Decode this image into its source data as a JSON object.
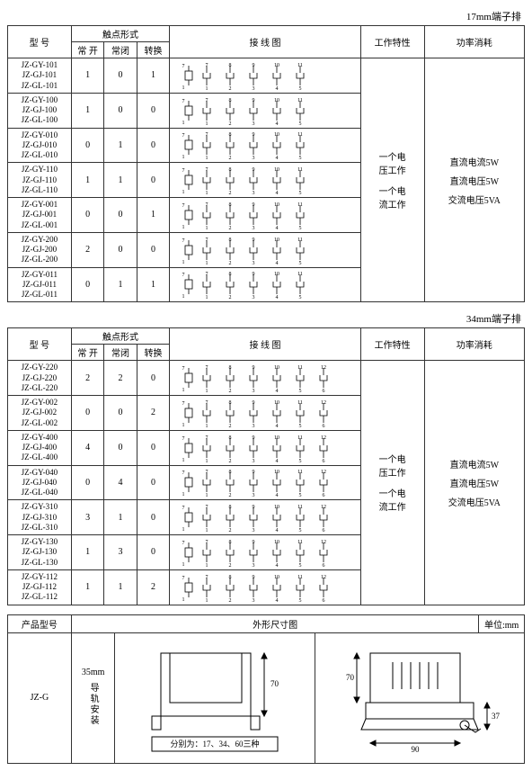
{
  "captions": {
    "top": "17mm端子排",
    "mid": "34mm端子排"
  },
  "headers": {
    "model": "型 号",
    "contact_form": "触点形式",
    "no": "常 开",
    "nc": "常闭",
    "co": "转换",
    "wiring": "接 线 图",
    "character": "工作特性",
    "power": "功率消耗",
    "product_model": "产品型号",
    "dim_diagram": "外形尺寸图",
    "unit": "单位:mm"
  },
  "work_char": {
    "line1": "一个电",
    "line2": "压工作",
    "line3": "一个电",
    "line4": "流工作"
  },
  "power_lines": {
    "l1": "直流电流5W",
    "l2": "直流电压5W",
    "l3": "交流电压5VA"
  },
  "table1": {
    "rows": [
      {
        "models": [
          "JZ-GY-101",
          "JZ-GJ-101",
          "JZ-GL-101"
        ],
        "no": "1",
        "nc": "0",
        "co": "1"
      },
      {
        "models": [
          "JZ-GY-100",
          "JZ-GJ-100",
          "JZ-GL-100"
        ],
        "no": "1",
        "nc": "0",
        "co": "0"
      },
      {
        "models": [
          "JZ-GY-010",
          "JZ-GJ-010",
          "JZ-GL-010"
        ],
        "no": "0",
        "nc": "1",
        "co": "0"
      },
      {
        "models": [
          "JZ-GY-110",
          "JZ-GJ-110",
          "JZ-GL-110"
        ],
        "no": "1",
        "nc": "1",
        "co": "0"
      },
      {
        "models": [
          "JZ-GY-001",
          "JZ-GJ-001",
          "JZ-GL-001"
        ],
        "no": "0",
        "nc": "0",
        "co": "1"
      },
      {
        "models": [
          "JZ-GY-200",
          "JZ-GJ-200",
          "JZ-GL-200"
        ],
        "no": "2",
        "nc": "0",
        "co": "0"
      },
      {
        "models": [
          "JZ-GY-011",
          "JZ-GJ-011",
          "JZ-GL-011"
        ],
        "no": "0",
        "nc": "1",
        "co": "1"
      }
    ]
  },
  "table2": {
    "rows": [
      {
        "models": [
          "JZ-GY-220",
          "JZ-GJ-220",
          "JZ-GL-220"
        ],
        "no": "2",
        "nc": "2",
        "co": "0"
      },
      {
        "models": [
          "JZ-GY-002",
          "JZ-GJ-002",
          "JZ-GL-002"
        ],
        "no": "0",
        "nc": "0",
        "co": "2"
      },
      {
        "models": [
          "JZ-GY-400",
          "JZ-GJ-400",
          "JZ-GL-400"
        ],
        "no": "4",
        "nc": "0",
        "co": "0"
      },
      {
        "models": [
          "JZ-GY-040",
          "JZ-GJ-040",
          "JZ-GL-040"
        ],
        "no": "0",
        "nc": "4",
        "co": "0"
      },
      {
        "models": [
          "JZ-GY-310",
          "JZ-GJ-310",
          "JZ-GL-310"
        ],
        "no": "3",
        "nc": "1",
        "co": "0"
      },
      {
        "models": [
          "JZ-GY-130",
          "JZ-GJ-130",
          "JZ-GL-130"
        ],
        "no": "1",
        "nc": "3",
        "co": "0"
      },
      {
        "models": [
          "JZ-GY-112",
          "JZ-GJ-112",
          "JZ-GL-112"
        ],
        "no": "1",
        "nc": "1",
        "co": "2"
      }
    ]
  },
  "terminal_nums": {
    "top4": [
      "7",
      "8",
      "9",
      "10",
      "11",
      "12"
    ],
    "bot4": [
      "1",
      "2",
      "3",
      "4",
      "5",
      "6"
    ]
  },
  "dim": {
    "rail_lead": "35mm",
    "rail_text": "导轨安装",
    "model": "JZ-G",
    "height": "70",
    "height2": "70",
    "width": "90",
    "h3": "37",
    "note": "分别为：17、34、60三种"
  },
  "svg_style": {
    "stroke": "#000",
    "stroke_width": 0.8,
    "font_size": 6
  }
}
